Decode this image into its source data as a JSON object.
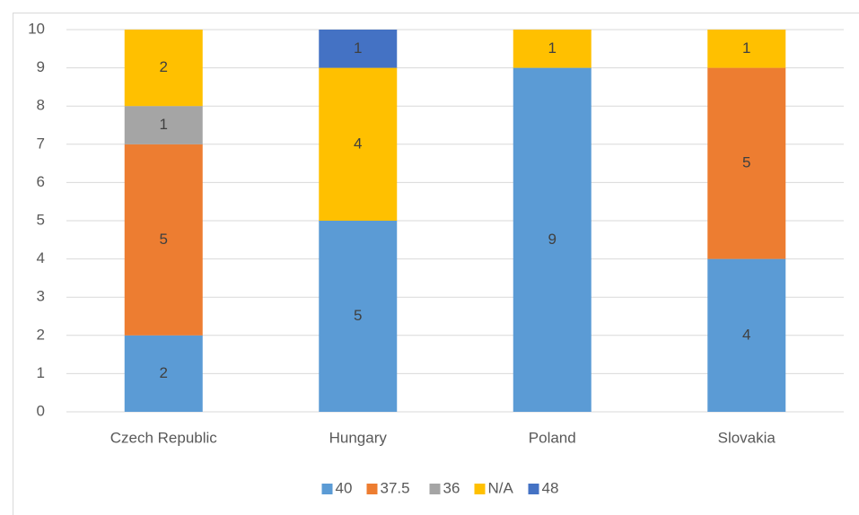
{
  "chart_data": {
    "type": "stacked_bar",
    "categories": [
      "Czech Republic",
      "Hungary",
      "Poland",
      "Slovakia"
    ],
    "series": [
      {
        "name": "40",
        "color": "#5b9bd5",
        "values": [
          2,
          5,
          9,
          4
        ]
      },
      {
        "name": "37.5",
        "color": "#ed7d31",
        "values": [
          5,
          null,
          null,
          5
        ]
      },
      {
        "name": "36",
        "color": "#a5a5a5",
        "values": [
          1,
          null,
          null,
          null
        ]
      },
      {
        "name": "N/A",
        "color": "#ffc000",
        "values": [
          2,
          4,
          1,
          1
        ]
      },
      {
        "name": "48",
        "color": "#4472c4",
        "values": [
          null,
          1,
          null,
          null
        ]
      }
    ],
    "ylim": [
      0,
      10
    ],
    "yticks": [
      0,
      1,
      2,
      3,
      4,
      5,
      6,
      7,
      8,
      9,
      10
    ],
    "grid": true,
    "legend": "bottom"
  }
}
